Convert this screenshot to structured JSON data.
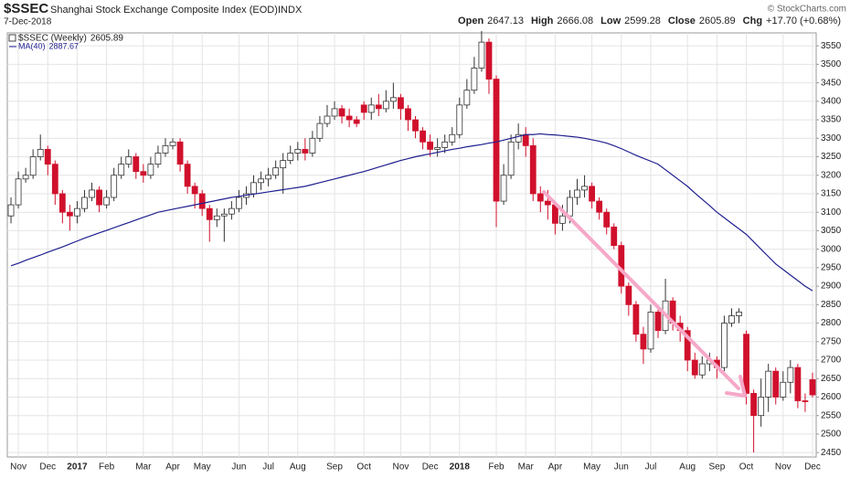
{
  "chart_data": {
    "type": "candlestick",
    "title": "$SSEC",
    "subtitle": "Shanghai Stock Exchange Composite Index (EOD)",
    "exchange": "INDX",
    "date": "7-Dec-2018",
    "credit": "© StockCharts.com",
    "quote": [
      {
        "label": "Open",
        "value": "2647.13"
      },
      {
        "label": "High",
        "value": "2666.08"
      },
      {
        "label": "Low",
        "value": "2599.28"
      },
      {
        "label": "Close",
        "value": "2605.89"
      },
      {
        "label": "Chg",
        "value": "+17.70 (+0.68%)"
      }
    ],
    "categories": [
      null,
      "Nov",
      null,
      null,
      null,
      "Dec",
      null,
      null,
      null,
      "2017",
      null,
      null,
      null,
      "Feb",
      null,
      null,
      null,
      null,
      "Mar",
      null,
      null,
      null,
      "Apr",
      null,
      null,
      null,
      "May",
      null,
      null,
      null,
      null,
      "Jun",
      null,
      null,
      null,
      "Jul",
      null,
      null,
      null,
      "Aug",
      null,
      null,
      null,
      null,
      "Sep",
      null,
      null,
      null,
      "Oct",
      null,
      null,
      null,
      null,
      "Nov",
      null,
      null,
      null,
      "Dec",
      null,
      null,
      null,
      "2018",
      null,
      null,
      null,
      null,
      "Feb",
      null,
      null,
      null,
      "Mar",
      null,
      null,
      null,
      "Apr",
      null,
      null,
      null,
      null,
      "May",
      null,
      null,
      null,
      "Jun",
      null,
      null,
      null,
      "Jul",
      null,
      null,
      null,
      null,
      "Aug",
      null,
      null,
      null,
      "Sep",
      null,
      null,
      null,
      "Oct",
      null,
      null,
      null,
      null,
      "Nov",
      null,
      null,
      null,
      "Dec"
    ],
    "series": [
      {
        "name": "$SSEC (Weekly)",
        "value_label": "2605.89",
        "up_color": "#ffffff",
        "down_color": "#d0102c",
        "open": [
          3090,
          3120,
          3190,
          3200,
          3250,
          3270,
          3230,
          3150,
          3100,
          3090,
          3110,
          3140,
          3160,
          3120,
          3140,
          3200,
          3230,
          3250,
          3210,
          3200,
          3230,
          3260,
          3280,
          3290,
          3230,
          3170,
          3150,
          3110,
          3080,
          3090,
          3095,
          3110,
          3140,
          3150,
          3180,
          3190,
          3200,
          3220,
          3240,
          3260,
          3270,
          3260,
          3300,
          3340,
          3360,
          3380,
          3360,
          3350,
          3390,
          3370,
          3390,
          3380,
          3400,
          3410,
          3380,
          3350,
          3320,
          3290,
          3270,
          3275,
          3290,
          3310,
          3390,
          3430,
          3490,
          3560,
          3460,
          3130,
          3200,
          3290,
          3310,
          3280,
          3150,
          3130,
          3120,
          3070,
          3090,
          3140,
          3160,
          3170,
          3130,
          3100,
          3060,
          3010,
          2900,
          2850,
          2770,
          2730,
          2830,
          2780,
          2860,
          2800,
          2780,
          2700,
          2660,
          2690,
          2700,
          2680,
          2800,
          2820,
          2770,
          2610,
          2550,
          2600,
          2670,
          2600,
          2640,
          2680,
          2590,
          2647.13
        ],
        "high": [
          3140,
          3210,
          3220,
          3270,
          3310,
          3280,
          3240,
          3160,
          3120,
          3130,
          3160,
          3180,
          3170,
          3160,
          3220,
          3250,
          3270,
          3260,
          3230,
          3250,
          3280,
          3300,
          3300,
          3300,
          3240,
          3180,
          3160,
          3120,
          3110,
          3110,
          3130,
          3160,
          3170,
          3200,
          3210,
          3220,
          3240,
          3260,
          3280,
          3290,
          3300,
          3320,
          3360,
          3390,
          3400,
          3390,
          3380,
          3360,
          3400,
          3410,
          3420,
          3430,
          3450,
          3420,
          3390,
          3360,
          3330,
          3310,
          3300,
          3310,
          3330,
          3410,
          3460,
          3520,
          3590,
          3570,
          3470,
          3230,
          3310,
          3340,
          3330,
          3300,
          3170,
          3160,
          3130,
          3120,
          3160,
          3190,
          3200,
          3180,
          3140,
          3110,
          3070,
          3020,
          2910,
          2860,
          2790,
          2850,
          2840,
          2920,
          2870,
          2820,
          2790,
          2720,
          2710,
          2720,
          2710,
          2820,
          2840,
          2840,
          2780,
          2620,
          2650,
          2690,
          2680,
          2670,
          2700,
          2690,
          2610,
          2666.08
        ],
        "low": [
          3070,
          3110,
          3180,
          3190,
          3240,
          3200,
          3120,
          3070,
          3050,
          3070,
          3100,
          3130,
          3100,
          3110,
          3130,
          3190,
          3220,
          3190,
          3180,
          3190,
          3220,
          3250,
          3270,
          3210,
          3150,
          3110,
          3090,
          3020,
          3060,
          3020,
          3080,
          3100,
          3120,
          3140,
          3160,
          3170,
          3190,
          3150,
          3230,
          3240,
          3240,
          3250,
          3290,
          3330,
          3350,
          3340,
          3330,
          3330,
          3350,
          3350,
          3360,
          3370,
          3380,
          3350,
          3320,
          3300,
          3270,
          3250,
          3250,
          3260,
          3280,
          3300,
          3380,
          3420,
          3480,
          3420,
          3060,
          3120,
          3190,
          3270,
          3250,
          3130,
          3100,
          3080,
          3040,
          3050,
          3070,
          3120,
          3140,
          3110,
          3080,
          3040,
          3000,
          2880,
          2820,
          2750,
          2690,
          2720,
          2760,
          2770,
          2780,
          2750,
          2670,
          2650,
          2650,
          2670,
          2650,
          2670,
          2790,
          2800,
          2580,
          2450,
          2520,
          2560,
          2580,
          2590,
          2610,
          2570,
          2560,
          2599.28
        ],
        "close": [
          3120,
          3190,
          3200,
          3250,
          3270,
          3230,
          3150,
          3100,
          3090,
          3110,
          3140,
          3160,
          3120,
          3140,
          3200,
          3230,
          3250,
          3210,
          3200,
          3230,
          3260,
          3280,
          3290,
          3230,
          3170,
          3150,
          3110,
          3080,
          3090,
          3095,
          3110,
          3140,
          3150,
          3180,
          3190,
          3200,
          3220,
          3240,
          3260,
          3270,
          3260,
          3300,
          3340,
          3360,
          3380,
          3360,
          3350,
          3340,
          3370,
          3390,
          3380,
          3400,
          3410,
          3380,
          3350,
          3320,
          3290,
          3270,
          3275,
          3290,
          3310,
          3390,
          3430,
          3490,
          3560,
          3460,
          3130,
          3200,
          3290,
          3310,
          3280,
          3150,
          3130,
          3120,
          3070,
          3090,
          3140,
          3160,
          3170,
          3130,
          3100,
          3060,
          3010,
          2900,
          2850,
          2770,
          2730,
          2830,
          2780,
          2860,
          2800,
          2780,
          2700,
          2660,
          2690,
          2700,
          2680,
          2800,
          2820,
          2830,
          2610,
          2550,
          2600,
          2670,
          2600,
          2640,
          2680,
          2590,
          2588.19,
          2605.89
        ]
      },
      {
        "name": "MA(40)",
        "value_label": "2887.67",
        "color": "#1f1f8f",
        "values": [
          2955,
          2962,
          2970,
          2977,
          2984,
          2992,
          2999,
          3006,
          3014,
          3022,
          3030,
          3037,
          3044,
          3051,
          3058,
          3065,
          3072,
          3079,
          3086,
          3093,
          3100,
          3104,
          3108,
          3112,
          3116,
          3120,
          3124,
          3128,
          3132,
          3136,
          3140,
          3143,
          3146,
          3149,
          3152,
          3155,
          3158,
          3161,
          3164,
          3167,
          3170,
          3175,
          3180,
          3185,
          3190,
          3195,
          3200,
          3205,
          3210,
          3216,
          3222,
          3228,
          3234,
          3240,
          3245,
          3250,
          3254,
          3258,
          3262,
          3266,
          3270,
          3273,
          3277,
          3280,
          3283,
          3287,
          3290,
          3295,
          3300,
          3305,
          3310,
          3310,
          3312,
          3310,
          3309,
          3307,
          3305,
          3303,
          3300,
          3296,
          3292,
          3287,
          3280,
          3272,
          3263,
          3254,
          3246,
          3238,
          3230,
          3215,
          3200,
          3185,
          3170,
          3152,
          3135,
          3118,
          3100,
          3085,
          3070,
          3055,
          3040,
          3020,
          3000,
          2980,
          2960,
          2945,
          2930,
          2915,
          2900,
          2887.67
        ]
      }
    ],
    "ylim": [
      2438,
      3585
    ],
    "yticks": [
      2450,
      2500,
      2550,
      2600,
      2650,
      2700,
      2750,
      2800,
      2850,
      2900,
      2950,
      3000,
      3050,
      3100,
      3150,
      3200,
      3250,
      3300,
      3350,
      3400,
      3450,
      3500,
      3550
    ],
    "grid": true
  }
}
